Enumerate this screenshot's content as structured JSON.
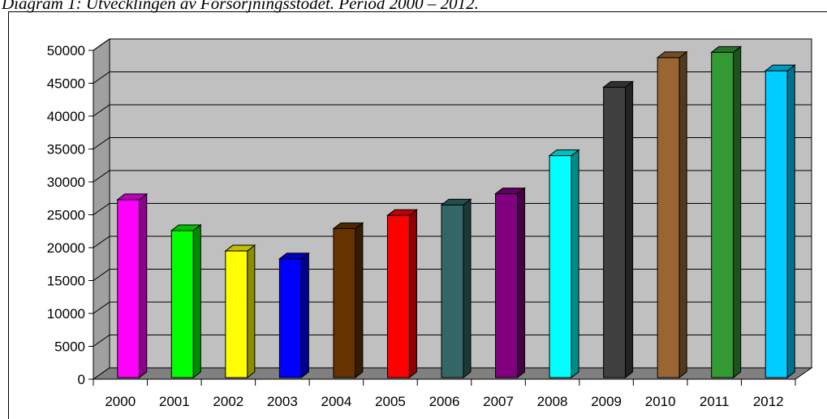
{
  "caption": "Diagram 1: Utvecklingen av Försörjningsstödet. Period 2000 – 2012.",
  "chart_data": {
    "type": "bar",
    "categories": [
      "2000",
      "2001",
      "2002",
      "2003",
      "2004",
      "2005",
      "2006",
      "2007",
      "2008",
      "2009",
      "2010",
      "2011",
      "2012"
    ],
    "values": [
      27300,
      22600,
      19500,
      18300,
      22900,
      24900,
      26500,
      28200,
      34000,
      44400,
      48900,
      49700,
      46900
    ],
    "colors": [
      "#FF00FF",
      "#00FF00",
      "#FFFF00",
      "#0000FF",
      "#663300",
      "#FF0000",
      "#336666",
      "#800080",
      "#00FFFF",
      "#404040",
      "#996633",
      "#339933",
      "#00CCFF"
    ],
    "ylim": [
      0,
      50000
    ],
    "yticks": [
      0,
      5000,
      10000,
      15000,
      20000,
      25000,
      30000,
      35000,
      40000,
      45000,
      50000
    ],
    "grid": true,
    "legend": "none",
    "style": "3d"
  }
}
